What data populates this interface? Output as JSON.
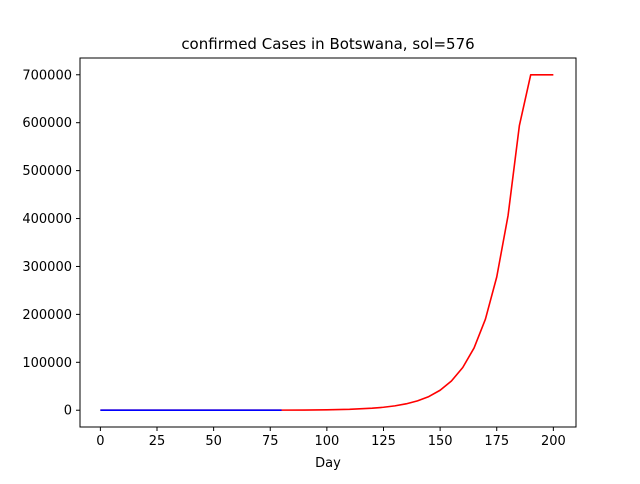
{
  "chart_data": {
    "type": "line",
    "title": "confirmed Cases in Botswana, sol=576",
    "xlabel": "Day",
    "ylabel": "",
    "xlim": [
      -9,
      210
    ],
    "ylim": [
      -35000,
      735000
    ],
    "xticks": [
      0,
      25,
      50,
      75,
      100,
      125,
      150,
      175,
      200
    ],
    "yticks": [
      0,
      100000,
      200000,
      300000,
      400000,
      500000,
      600000,
      700000
    ],
    "grid": false,
    "legend": "none",
    "series": [
      {
        "color": "#ff0000",
        "x": [
          0,
          20,
          40,
          60,
          80,
          90,
          100,
          110,
          120,
          125,
          130,
          135,
          140,
          145,
          150,
          155,
          160,
          165,
          170,
          175,
          180,
          185,
          190,
          195,
          200
        ],
        "y": [
          0,
          0,
          0,
          0,
          200,
          400,
          900,
          1900,
          4200,
          6200,
          9100,
          13300,
          19500,
          28500,
          41700,
          61000,
          89200,
          130000,
          190000,
          278000,
          406000,
          594000,
          700000,
          700000,
          700000
        ]
      },
      {
        "color": "#0000ff",
        "x": [
          0,
          10,
          20,
          30,
          40,
          50,
          60,
          70,
          80
        ],
        "y": [
          0,
          0,
          0,
          0,
          0,
          0,
          0,
          0,
          0
        ]
      }
    ]
  },
  "style": {
    "text_color": "#000000",
    "axis_color": "#000000",
    "background": "#ffffff"
  }
}
